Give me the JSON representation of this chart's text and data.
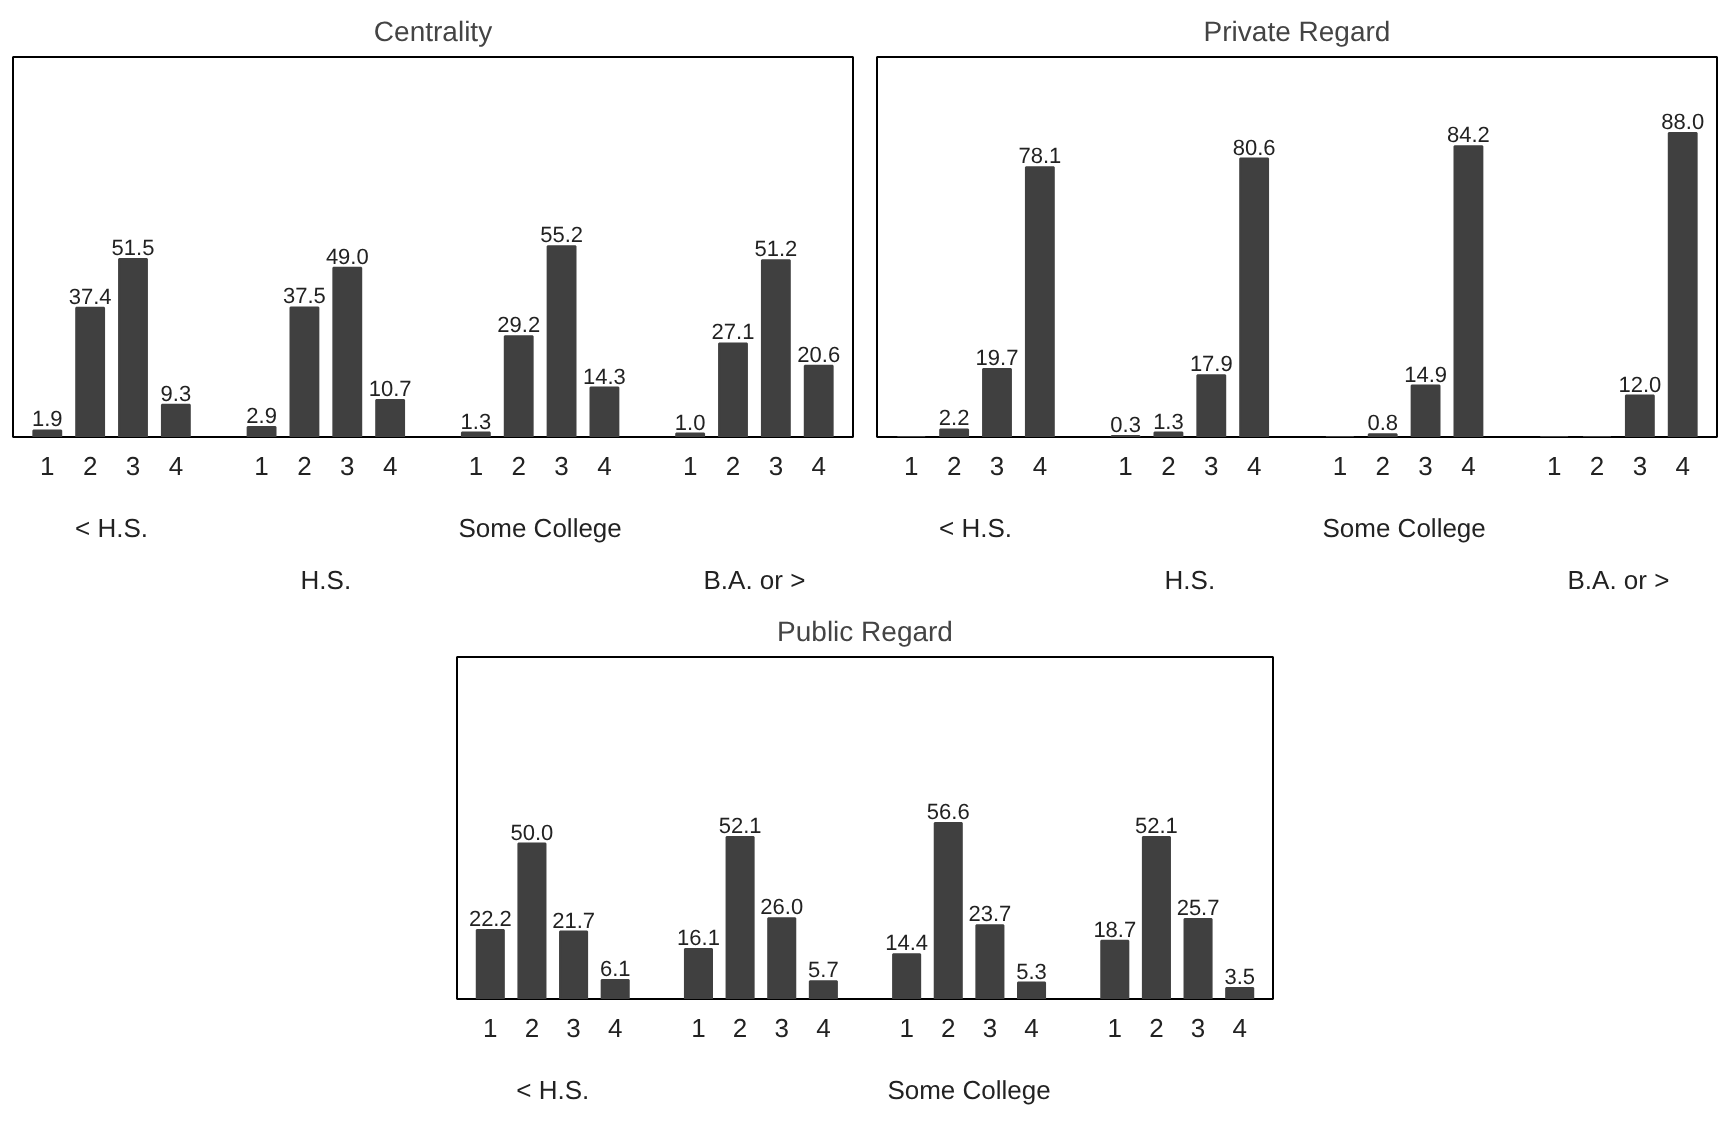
{
  "chart_data": [
    {
      "type": "bar",
      "title": "Centrality",
      "categories": [
        "1",
        "2",
        "3",
        "4",
        null,
        "1",
        "2",
        "3",
        "4",
        null,
        "1",
        "2",
        "3",
        "4",
        null,
        "1",
        "2",
        "3",
        "4"
      ],
      "color": "#404040",
      "grid": false,
      "values": [
        1.9,
        37.4,
        51.5,
        9.3,
        null,
        2.9,
        37.5,
        49.0,
        10.7,
        null,
        1.3,
        29.2,
        55.2,
        14.3,
        null,
        1.0,
        27.1,
        51.2,
        20.6
      ],
      "value_labels": [
        "1.9",
        "37.4",
        "51.5",
        "9.3",
        null,
        "2.9",
        "37.5",
        "49.0",
        "10.7",
        null,
        "1.3",
        "29.2",
        "55.2",
        "14.3",
        null,
        "1.0",
        "27.1",
        "51.2",
        "20.6"
      ],
      "annotations": [
        "< H.S.",
        "H.S.",
        "Some College",
        "B.A. or >"
      ]
    },
    {
      "type": "bar",
      "title": "Private Regard",
      "categories": [
        "1",
        "2",
        "3",
        "4",
        null,
        "1",
        "2",
        "3",
        "4",
        null,
        "1",
        "2",
        "3",
        "4",
        null,
        "1",
        "2",
        "3",
        "4"
      ],
      "color": "#404040",
      "grid": false,
      "values": [
        0,
        2.2,
        19.7,
        78.1,
        null,
        0.3,
        1.3,
        17.9,
        80.6,
        null,
        0,
        0.8,
        14.9,
        84.2,
        null,
        0,
        0,
        12.0,
        88.0
      ],
      "value_labels": [
        null,
        "2.2",
        "19.7",
        "78.1",
        null,
        "0.3",
        "1.3",
        "17.9",
        "80.6",
        null,
        null,
        "0.8",
        "14.9",
        "84.2",
        null,
        null,
        null,
        "12.0",
        "88.0"
      ],
      "annotations": [
        "< H.S.",
        "H.S.",
        "Some College",
        "B.A. or >"
      ]
    },
    {
      "type": "bar",
      "title": "Public Regard",
      "categories": [
        "1",
        "2",
        "3",
        "4",
        null,
        "1",
        "2",
        "3",
        "4",
        null,
        "1",
        "2",
        "3",
        "4",
        null,
        "1",
        "2",
        "3",
        "4"
      ],
      "color": "#404040",
      "grid": false,
      "values": [
        22.2,
        50.0,
        21.7,
        6.1,
        null,
        16.1,
        52.1,
        26.0,
        5.7,
        null,
        14.4,
        56.6,
        23.7,
        5.3,
        null,
        18.7,
        52.1,
        25.7,
        3.5
      ],
      "value_labels": [
        "22.2",
        "50.0",
        "21.7",
        "6.1",
        null,
        "16.1",
        "52.1",
        "26.0",
        "5.7",
        null,
        "14.4",
        "56.6",
        "23.7",
        "5.3",
        null,
        "18.7",
        "52.1",
        "25.7",
        "3.5"
      ],
      "annotations": [
        "< H.S.",
        "Some College"
      ]
    }
  ]
}
